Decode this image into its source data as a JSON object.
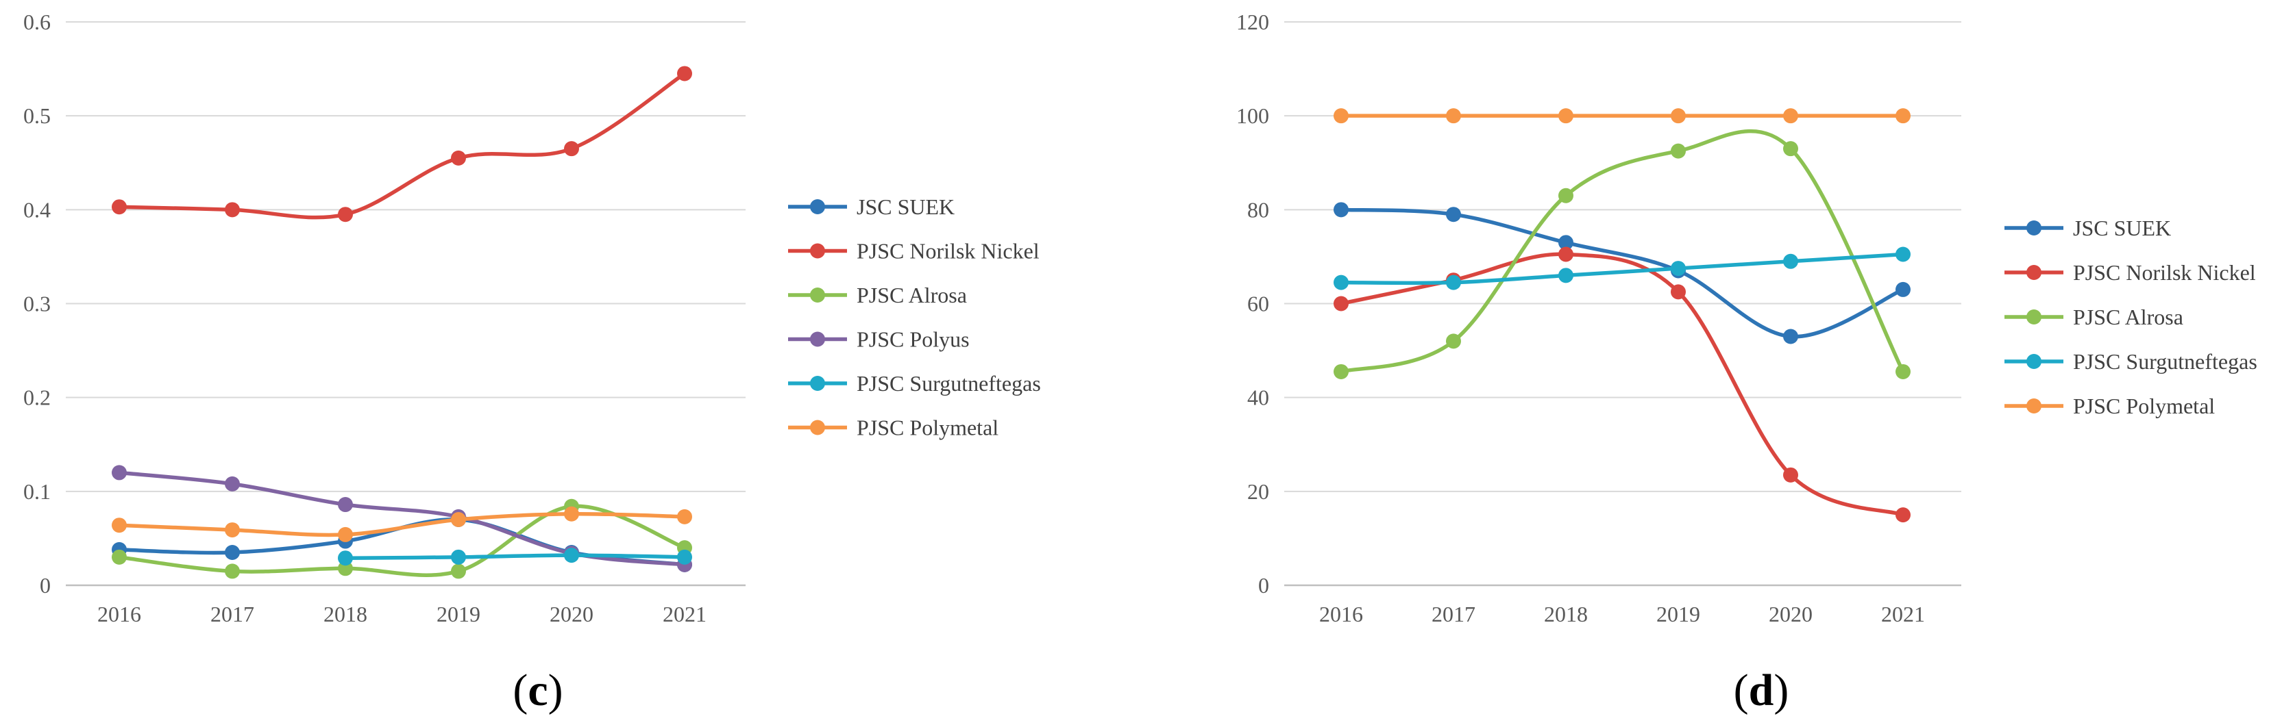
{
  "colors": {
    "JSC SUEK": "#2e75b6",
    "PJSC Norilsk Nickel": "#d9463f",
    "PJSC Alrosa": "#8cc152",
    "PJSC Polyus": "#8064a2",
    "PJSC Surgutneftegas": "#1ea9c8",
    "PJSC Polymetal": "#f79646",
    "grid": "#d9d9d9",
    "axis": "#bfbfbf"
  },
  "chart_data": [
    {
      "type": "line",
      "panel_label": "c",
      "title": "",
      "xlabel": "",
      "ylabel": "",
      "categories": [
        "2016",
        "2017",
        "2018",
        "2019",
        "2020",
        "2021"
      ],
      "ylim": [
        0,
        0.6
      ],
      "yticks": [
        "0",
        "0.1",
        "0.2",
        "0.3",
        "0.4",
        "0.5",
        "0.6"
      ],
      "grid": true,
      "legend_position": "right",
      "series": [
        {
          "name": "JSC SUEK",
          "values": [
            0.038,
            0.035,
            0.047,
            0.07,
            0.035,
            0.022
          ]
        },
        {
          "name": "PJSC Norilsk Nickel",
          "values": [
            0.403,
            0.4,
            0.395,
            0.455,
            0.465,
            0.545
          ]
        },
        {
          "name": "PJSC Alrosa",
          "values": [
            0.03,
            0.015,
            0.018,
            0.015,
            0.084,
            0.04
          ]
        },
        {
          "name": "PJSC Polyus",
          "values": [
            0.12,
            0.108,
            0.086,
            0.073,
            0.034,
            0.022
          ]
        },
        {
          "name": "PJSC Surgutneftegas",
          "values": [
            null,
            null,
            0.029,
            0.03,
            0.032,
            0.03
          ]
        },
        {
          "name": "PJSC Polymetal",
          "values": [
            0.064,
            0.059,
            0.054,
            0.07,
            0.076,
            0.073
          ]
        }
      ]
    },
    {
      "type": "line",
      "panel_label": "d",
      "title": "",
      "xlabel": "",
      "ylabel": "",
      "categories": [
        "2016",
        "2017",
        "2018",
        "2019",
        "2020",
        "2021"
      ],
      "ylim": [
        0,
        120
      ],
      "yticks": [
        "0",
        "20",
        "40",
        "60",
        "80",
        "100",
        "120"
      ],
      "grid": true,
      "legend_position": "right",
      "series": [
        {
          "name": "JSC SUEK",
          "values": [
            80,
            79,
            73,
            67,
            53,
            63
          ]
        },
        {
          "name": "PJSC Norilsk Nickel",
          "values": [
            60,
            65,
            70.5,
            62.5,
            23.5,
            15
          ]
        },
        {
          "name": "PJSC Alrosa",
          "values": [
            45.5,
            52,
            83,
            92.5,
            93,
            45.5
          ]
        },
        {
          "name": "PJSC Surgutneftegas",
          "values": [
            64.5,
            64.5,
            66,
            67.5,
            69,
            70.5
          ]
        },
        {
          "name": "PJSC Polymetal",
          "values": [
            100,
            100,
            100,
            100,
            100,
            100
          ]
        }
      ]
    }
  ]
}
